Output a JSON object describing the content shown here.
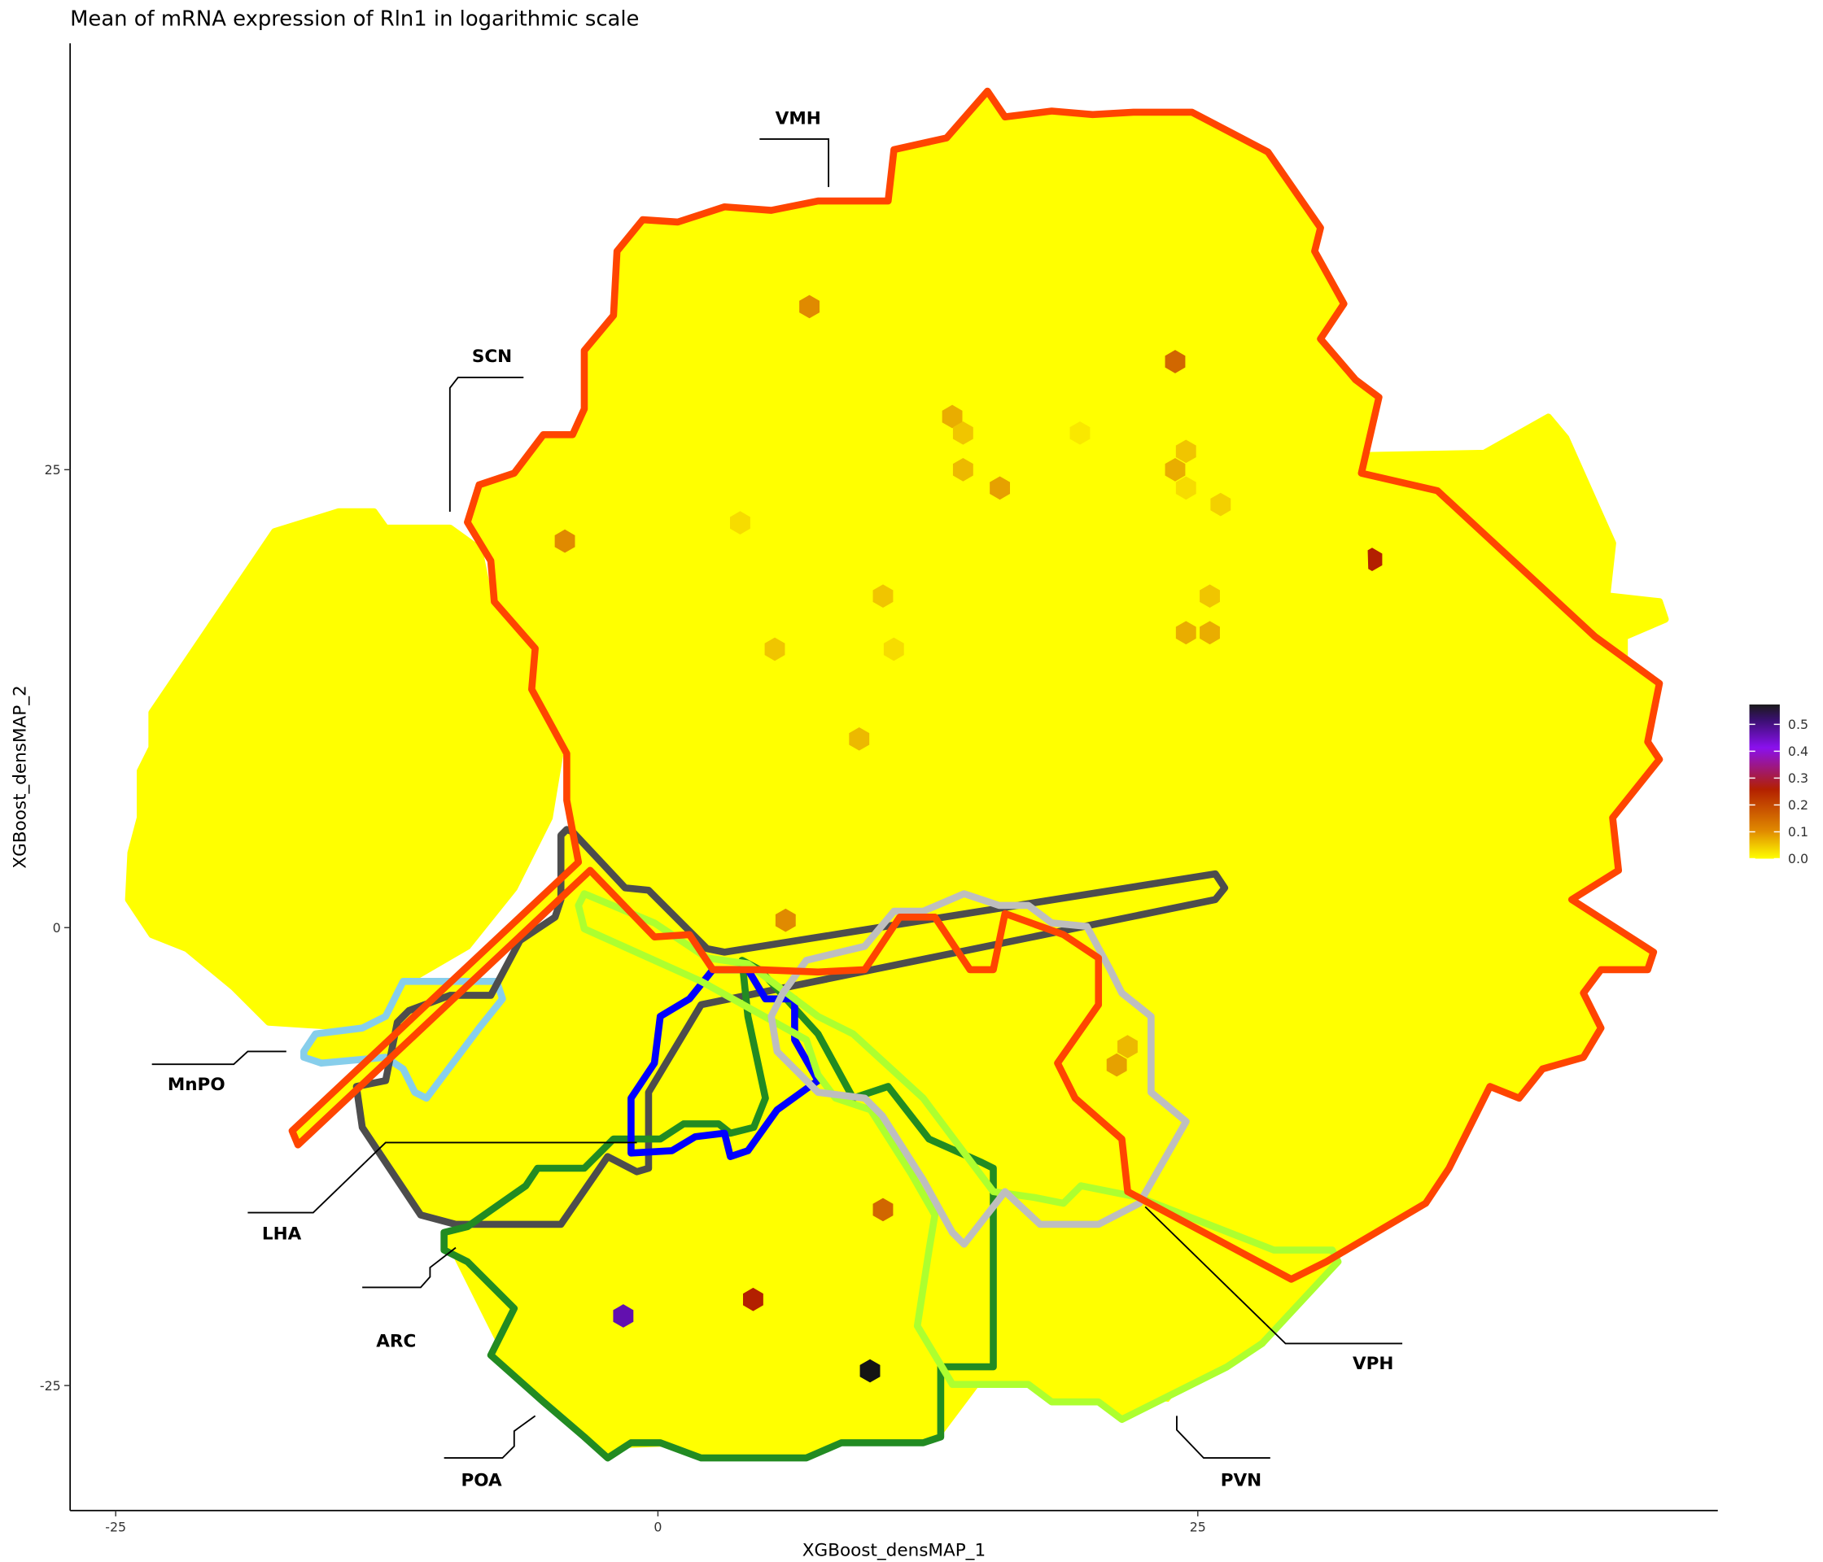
{
  "chart_data": {
    "type": "heatmap",
    "subtype": "hexbin",
    "title": "Mean of mRNA expression of Rln1 in logarithmic scale",
    "xlabel": "XGBoost_densMAP_1",
    "ylabel": "XGBoost_densMAP_2",
    "x_ticks": [
      "-25",
      "0",
      "25"
    ],
    "y_ticks": [
      "25",
      "0",
      "-25"
    ],
    "xlim": [
      -27,
      49
    ],
    "ylim": [
      -32,
      48
    ],
    "grid": false,
    "background_value": 0.0,
    "colorbar": {
      "ticks": [
        "0.0",
        "0.1",
        "0.2",
        "0.3",
        "0.4",
        "0.5"
      ],
      "range": [
        0,
        0.57
      ],
      "colors": [
        "#ffff00",
        "#e08a00",
        "#b02000",
        "#8a10ee",
        "#1a1a1a"
      ],
      "placement": "right"
    },
    "points": [
      {
        "x": 7.0,
        "y": 33.9,
        "value": 0.1
      },
      {
        "x": 23.9,
        "y": 30.9,
        "value": 0.15
      },
      {
        "x": 13.6,
        "y": 27.9,
        "value": 0.07
      },
      {
        "x": 14.1,
        "y": 27.0,
        "value": 0.05
      },
      {
        "x": 19.5,
        "y": 27.0,
        "value": 0.02
      },
      {
        "x": 24.4,
        "y": 26.0,
        "value": 0.05
      },
      {
        "x": 23.9,
        "y": 25.0,
        "value": 0.07
      },
      {
        "x": 14.1,
        "y": 25.0,
        "value": 0.06
      },
      {
        "x": 15.8,
        "y": 24.0,
        "value": 0.08
      },
      {
        "x": 24.4,
        "y": 24.0,
        "value": 0.03
      },
      {
        "x": 26.0,
        "y": 23.1,
        "value": 0.04
      },
      {
        "x": 3.8,
        "y": 22.1,
        "value": 0.03
      },
      {
        "x": -4.3,
        "y": 21.1,
        "value": 0.1
      },
      {
        "x": 33.0,
        "y": 20.1,
        "value": 0.25
      },
      {
        "x": 10.4,
        "y": 18.1,
        "value": 0.05
      },
      {
        "x": 25.5,
        "y": 18.1,
        "value": 0.05
      },
      {
        "x": 5.4,
        "y": 15.2,
        "value": 0.05
      },
      {
        "x": 10.9,
        "y": 15.2,
        "value": 0.03
      },
      {
        "x": 24.4,
        "y": 16.1,
        "value": 0.07
      },
      {
        "x": 25.5,
        "y": 16.1,
        "value": 0.07
      },
      {
        "x": 9.3,
        "y": 10.3,
        "value": 0.06
      },
      {
        "x": 5.9,
        "y": 0.4,
        "value": 0.1
      },
      {
        "x": 21.7,
        "y": -6.5,
        "value": 0.06
      },
      {
        "x": 21.2,
        "y": -7.5,
        "value": 0.08
      },
      {
        "x": 10.4,
        "y": -15.4,
        "value": 0.15
      },
      {
        "x": 4.4,
        "y": -20.3,
        "value": 0.25
      },
      {
        "x": -1.6,
        "y": -21.2,
        "value": 0.45
      },
      {
        "x": 9.8,
        "y": -24.2,
        "value": 0.58
      }
    ],
    "regions": [
      {
        "name": "VMH",
        "color": "#ff4500"
      },
      {
        "name": "SCN",
        "color": "#ffff00"
      },
      {
        "name": "MnPO",
        "color": "#87ceeb"
      },
      {
        "name": "LHA",
        "color": "#4d4d4d"
      },
      {
        "name": "ARC",
        "color": "#0000ff"
      },
      {
        "name": "POA",
        "color": "#228b22"
      },
      {
        "name": "PVN",
        "color": "#adff2f"
      },
      {
        "name": "VPH",
        "color": "#bebebe"
      }
    ]
  }
}
